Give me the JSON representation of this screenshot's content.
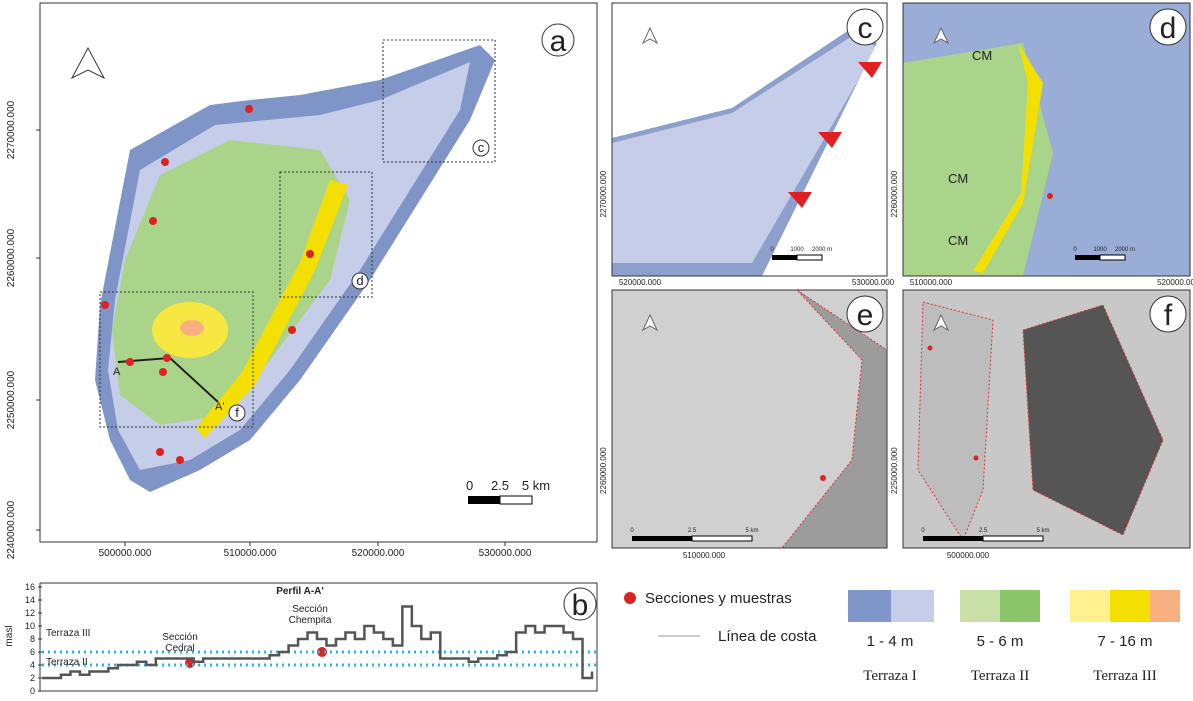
{
  "panel_a": {
    "label": "a",
    "x_labels": [
      "500000.000",
      "510000.000",
      "520000.000",
      "530000.000"
    ],
    "y_labels": [
      "2240000.000",
      "2250000.000",
      "2260000.000",
      "2270000.000"
    ],
    "scale": [
      "0",
      "2.5",
      "5 km"
    ],
    "box_labels": [
      "c",
      "d",
      "f"
    ],
    "profile_ends": [
      "A",
      "A'"
    ]
  },
  "panel_b": {
    "label": "b",
    "title": "Perfil A-A'",
    "y_label": "masl",
    "ylim": [
      0,
      16
    ],
    "yticks": [
      0,
      2,
      4,
      6,
      8,
      10,
      12,
      14,
      16
    ],
    "levels": [
      4,
      6
    ],
    "terrace_labels": [
      "Terraza III",
      "Terraza II"
    ],
    "cedral": [
      "Sección",
      "Cedral"
    ],
    "chempita": [
      "Sección",
      "Chempita"
    ],
    "profile": [
      2,
      2,
      2.5,
      3,
      2.5,
      3,
      3,
      3.5,
      4,
      4,
      4.5,
      4,
      5,
      5,
      5,
      5,
      4.5,
      5,
      5,
      5,
      5,
      5,
      5,
      5,
      5.5,
      6,
      7,
      8,
      9,
      8,
      7,
      8,
      9,
      8,
      10,
      9,
      8,
      7,
      13,
      10,
      8,
      9,
      5,
      5,
      5,
      4.5,
      5,
      5,
      5.5,
      6,
      9,
      10,
      9,
      10,
      10,
      9,
      8,
      2,
      3
    ]
  },
  "panel_c": {
    "label": "c",
    "x_labels": [
      "520000.000",
      "530000.000"
    ],
    "y_label": "2270000.000",
    "scale": [
      "0",
      "1000",
      "2000 m"
    ]
  },
  "panel_d": {
    "label": "d",
    "x_labels": [
      "510000.000",
      "520000.00"
    ],
    "y_label": "2260000.000",
    "scale": [
      "0",
      "1000",
      "2000 m"
    ],
    "zones": [
      "CM",
      "CM",
      "CM"
    ]
  },
  "panel_e": {
    "label": "e",
    "x_label": "510000.000",
    "y_label": "2260000.000",
    "scale": [
      "0",
      "2.5",
      "5 km"
    ]
  },
  "panel_f": {
    "label": "f",
    "x_label": "500000.000",
    "y_label": "2250000.000",
    "scale": [
      "0",
      "2.5",
      "5 km"
    ]
  },
  "legend": {
    "samples": "Secciones y muestras",
    "coast": "Línea de costa",
    "ranges": [
      "1 - 4 m",
      "5 - 6 m",
      "7 - 16 m"
    ],
    "terraces": [
      "Terraza I",
      "Terraza II",
      "Terraza III"
    ]
  }
}
